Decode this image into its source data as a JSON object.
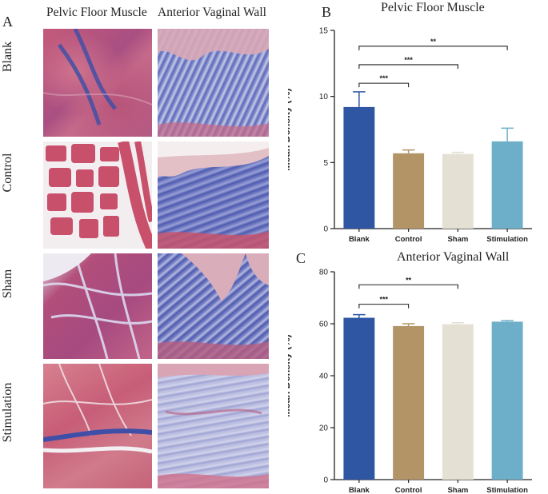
{
  "panel_a": {
    "letter": "A",
    "columns": [
      "Pelvic Floor Muscle",
      "Anterior Vaginal Wall"
    ],
    "rows": [
      "Blank",
      "Control",
      "Sham",
      "Stimulation"
    ]
  },
  "colors": {
    "Blank": "#2f56a3",
    "Control": "#b29467",
    "Sham": "#e4e0d4",
    "Stimulation": "#6dafc8",
    "muscle_pink": "#c2546e",
    "collagen_blue": "#4f5bb0"
  },
  "chart_data": [
    {
      "letter": "B",
      "type": "bar",
      "title": "Pelvic Floor Muscle",
      "xlabel": "",
      "ylabel": "Mean Density (%)",
      "ylim": [
        0,
        15
      ],
      "yticks": [
        0,
        5,
        10,
        15
      ],
      "tick_labels": [
        "0",
        "5",
        "10",
        "15"
      ],
      "categories": [
        "Blank",
        "Control",
        "Sham",
        "Stimulation"
      ],
      "values": [
        9.2,
        5.7,
        5.65,
        6.6
      ],
      "errors": [
        1.15,
        0.25,
        0.12,
        1.0
      ],
      "significance": [
        {
          "from": 0,
          "to": 1,
          "label": "***",
          "y": 11.0
        },
        {
          "from": 0,
          "to": 2,
          "label": "***",
          "y": 12.4
        },
        {
          "from": 0,
          "to": 3,
          "label": "**",
          "y": 13.8
        }
      ]
    },
    {
      "letter": "C",
      "type": "bar",
      "title": "Anterior Vaginal Wall",
      "xlabel": "",
      "ylabel": "Mean Density (%)",
      "ylim": [
        0,
        80
      ],
      "yticks": [
        0,
        20,
        40,
        60,
        80
      ],
      "tick_labels": [
        "0",
        "20",
        "40",
        "60",
        "80"
      ],
      "categories": [
        "Blank",
        "Control",
        "Sham",
        "Stimulation"
      ],
      "values": [
        62.3,
        59.1,
        59.8,
        60.8
      ],
      "errors": [
        1.2,
        0.9,
        0.6,
        0.4
      ],
      "significance": [
        {
          "from": 0,
          "to": 1,
          "label": "***",
          "y": 67.5
        },
        {
          "from": 0,
          "to": 2,
          "label": "**",
          "y": 75.0
        }
      ]
    }
  ]
}
